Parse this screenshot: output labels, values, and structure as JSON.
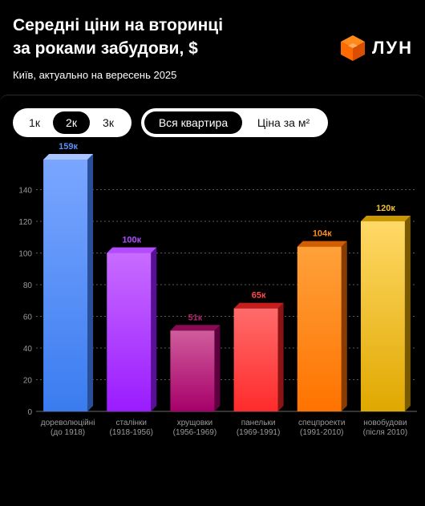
{
  "header": {
    "title_line1": "Середні ціни на вторинці",
    "title_line2": "за роками забудови, $",
    "subtitle": "Київ, актуально на вересень 2025",
    "logo_text": "ЛУН"
  },
  "controls": {
    "rooms": [
      {
        "label": "1к",
        "active": false
      },
      {
        "label": "2к",
        "active": true
      },
      {
        "label": "3к",
        "active": false
      }
    ],
    "modes": [
      {
        "label": "Вся квартира",
        "active": true
      },
      {
        "label": "Ціна за м²",
        "active": false
      }
    ]
  },
  "colors": {
    "background": "#000000",
    "logo_orange": "#ff6a00"
  },
  "chart_data": {
    "type": "bar",
    "categories": [
      [
        "дореволюційні",
        "(до 1918)"
      ],
      [
        "сталінки",
        "(1918-1956)"
      ],
      [
        "хрущовки",
        "(1956-1969)"
      ],
      [
        "панельки",
        "(1969-1991)"
      ],
      [
        "спецпроекти",
        "(1991-2010)"
      ],
      [
        "новобудови",
        "(після 2010)"
      ]
    ],
    "values": [
      159,
      100,
      51,
      65,
      104,
      120
    ],
    "value_labels": [
      "159к",
      "100к",
      "51к",
      "65к",
      "104к",
      "120к"
    ],
    "ylim": [
      0,
      159
    ],
    "yticks": [
      0,
      20,
      40,
      60,
      80,
      100,
      120,
      140
    ],
    "grid": true,
    "bar_colors": [
      {
        "top": "#7aa6ff",
        "bottom": "#3a7cf0",
        "side": "#2a4f9a",
        "cap": "#a9c4ff",
        "label": "#5b8ff5"
      },
      {
        "top": "#c86bff",
        "bottom": "#9a1cff",
        "side": "#5a0f96",
        "cap": "#b34cff",
        "label": "#b04cff"
      },
      {
        "top": "#d05d9c",
        "bottom": "#a6006a",
        "side": "#5e0040",
        "cap": "#8a0a56",
        "label": "#b4246f"
      },
      {
        "top": "#ff6b6b",
        "bottom": "#ff2b2b",
        "side": "#8a1414",
        "cap": "#c41d1d",
        "label": "#ff4a4a"
      },
      {
        "top": "#ffa13a",
        "bottom": "#ff7300",
        "side": "#8a3c00",
        "cap": "#d25e00",
        "label": "#ff8c1a"
      },
      {
        "top": "#ffd966",
        "bottom": "#e0a800",
        "side": "#7a5a00",
        "cap": "#c99700",
        "label": "#f2c12e"
      }
    ]
  }
}
